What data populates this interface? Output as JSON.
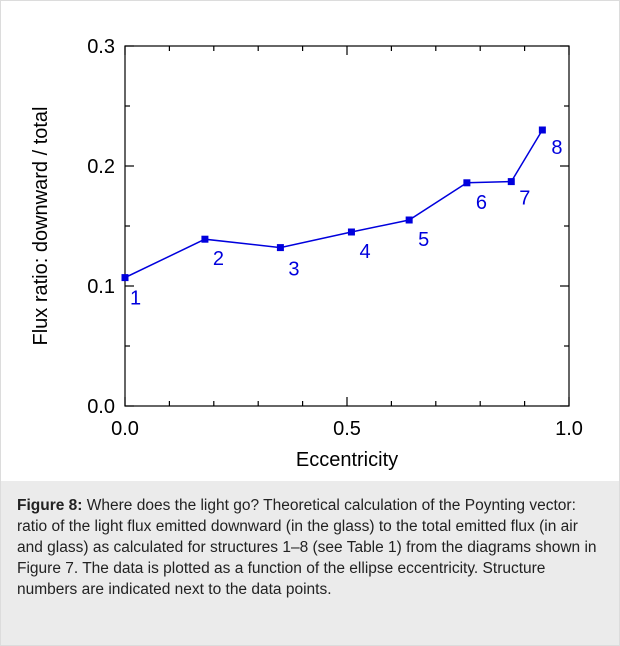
{
  "chart_data": {
    "type": "line",
    "xlabel": "Eccentricity",
    "ylabel": "Flux ratio: downward / total",
    "xlim": [
      0.0,
      1.0
    ],
    "ylim": [
      0.0,
      0.3
    ],
    "x_ticks": [
      "0.0",
      "0.5",
      "1.0"
    ],
    "y_ticks": [
      "0.0",
      "0.1",
      "0.2",
      "0.3"
    ],
    "grid": false,
    "color": "#0000dd",
    "points": [
      {
        "x": 0.0,
        "y": 0.107,
        "label": "1"
      },
      {
        "x": 0.18,
        "y": 0.139,
        "label": "2"
      },
      {
        "x": 0.35,
        "y": 0.132,
        "label": "3"
      },
      {
        "x": 0.51,
        "y": 0.145,
        "label": "4"
      },
      {
        "x": 0.64,
        "y": 0.155,
        "label": "5"
      },
      {
        "x": 0.77,
        "y": 0.186,
        "label": "6"
      },
      {
        "x": 0.87,
        "y": 0.187,
        "label": "7"
      },
      {
        "x": 0.94,
        "y": 0.23,
        "label": "8"
      }
    ]
  },
  "caption": {
    "label": "Figure 8:",
    "text": " Where does the light go? Theoretical calculation of the Poynting vector: ratio of the light flux emitted downward (in the glass) to the total emitted flux (in air and glass) as calculated for structures 1–8 (see Table 1) from the diagrams shown in Figure 7. The data is plotted as a function of the ellipse eccentricity. Structure numbers are indicated next to the data points."
  }
}
